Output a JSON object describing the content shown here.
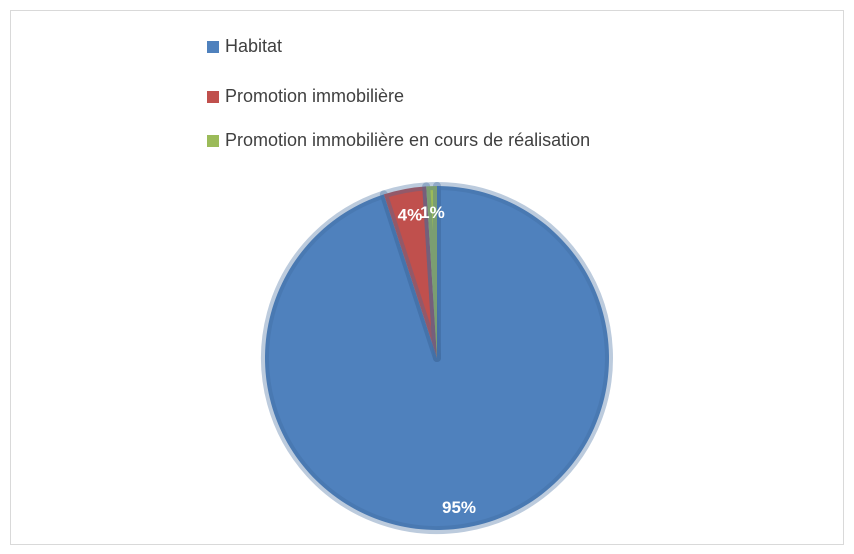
{
  "chart_data": {
    "type": "pie",
    "categories": [
      "Habitat",
      "Promotion immobilière",
      "Promotion immobilière en cours de réalisation"
    ],
    "values": [
      95,
      4,
      1
    ],
    "value_labels": [
      "95%",
      "4%",
      "1%"
    ],
    "colors": [
      "#4f81bd",
      "#c0504d",
      "#9bbb59"
    ],
    "legend": "top"
  }
}
